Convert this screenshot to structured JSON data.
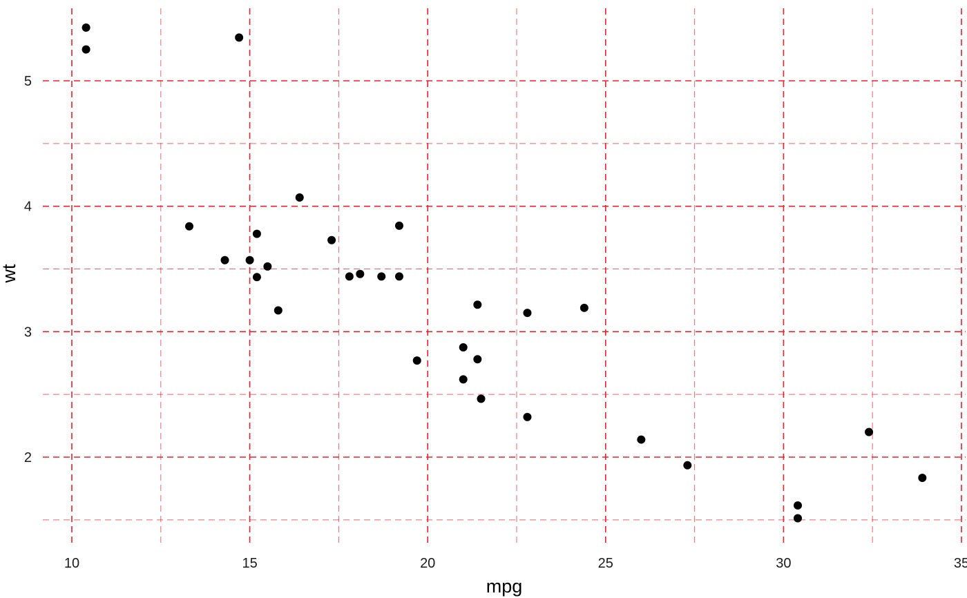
{
  "chart_data": {
    "type": "scatter",
    "title": "",
    "xlabel": "mpg",
    "ylabel": "wt",
    "xlim": [
      9.2,
      35
    ],
    "ylim": [
      1.35,
      5.5
    ],
    "x_ticks": [
      10,
      15,
      20,
      25,
      30,
      35
    ],
    "y_ticks": [
      2,
      3,
      4,
      5
    ],
    "x_tick_labels": [
      "10",
      "15",
      "20",
      "25",
      "30",
      "35"
    ],
    "y_tick_labels": [
      "2",
      "3",
      "4",
      "5"
    ],
    "x_minor_ticks": [
      12.5,
      17.5,
      22.5,
      27.5,
      32.5
    ],
    "y_minor_ticks": [
      1.5,
      2.5,
      3.5,
      4.5
    ],
    "grid": true,
    "grid_style": "dashed",
    "grid_color": "#e8202a",
    "point_color": "#000000",
    "background": "#ffffff",
    "points": [
      {
        "x": 21.0,
        "y": 2.62
      },
      {
        "x": 21.0,
        "y": 2.875
      },
      {
        "x": 22.8,
        "y": 2.32
      },
      {
        "x": 21.4,
        "y": 3.215
      },
      {
        "x": 18.7,
        "y": 3.44
      },
      {
        "x": 18.1,
        "y": 3.46
      },
      {
        "x": 14.3,
        "y": 3.57
      },
      {
        "x": 24.4,
        "y": 3.19
      },
      {
        "x": 22.8,
        "y": 3.15
      },
      {
        "x": 19.2,
        "y": 3.44
      },
      {
        "x": 17.8,
        "y": 3.44
      },
      {
        "x": 16.4,
        "y": 4.07
      },
      {
        "x": 17.3,
        "y": 3.73
      },
      {
        "x": 15.2,
        "y": 3.78
      },
      {
        "x": 10.4,
        "y": 5.25
      },
      {
        "x": 10.4,
        "y": 5.424
      },
      {
        "x": 14.7,
        "y": 5.345
      },
      {
        "x": 32.4,
        "y": 2.2
      },
      {
        "x": 30.4,
        "y": 1.615
      },
      {
        "x": 33.9,
        "y": 1.835
      },
      {
        "x": 21.5,
        "y": 2.465
      },
      {
        "x": 15.5,
        "y": 3.52
      },
      {
        "x": 15.2,
        "y": 3.435
      },
      {
        "x": 13.3,
        "y": 3.84
      },
      {
        "x": 19.2,
        "y": 3.845
      },
      {
        "x": 27.3,
        "y": 1.935
      },
      {
        "x": 26.0,
        "y": 2.14
      },
      {
        "x": 30.4,
        "y": 1.513
      },
      {
        "x": 15.8,
        "y": 3.17
      },
      {
        "x": 19.7,
        "y": 2.77
      },
      {
        "x": 15.0,
        "y": 3.57
      },
      {
        "x": 21.4,
        "y": 2.78
      }
    ]
  }
}
